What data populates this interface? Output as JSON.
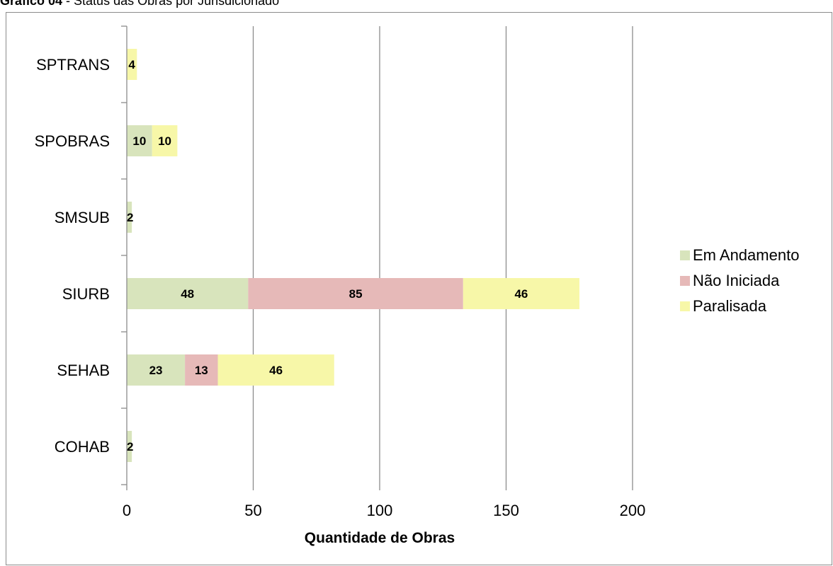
{
  "caption": {
    "prefix": "Gráfico 04",
    "text": " - Status das Obras por Jurisdicionado"
  },
  "chart_data": {
    "type": "bar",
    "orientation": "horizontal",
    "stacked": true,
    "title": "",
    "xlabel": "Quantidade de Obras",
    "ylabel": "",
    "xlim": [
      0,
      200
    ],
    "xticks": [
      0,
      50,
      100,
      150,
      200
    ],
    "grid": "vertical",
    "legend": "right",
    "categories": [
      "SPTRANS",
      "SPOBRAS",
      "SMSUB",
      "SIURB",
      "SEHAB",
      "COHAB"
    ],
    "series": [
      {
        "name": "Em Andamento",
        "color": "#d8e4bc",
        "values": [
          0,
          10,
          2,
          48,
          23,
          2
        ]
      },
      {
        "name": "Não Iniciada",
        "color": "#e6b9b8",
        "values": [
          0,
          0,
          0,
          85,
          13,
          0
        ]
      },
      {
        "name": "Paralisada",
        "color": "#f7f7a8",
        "values": [
          4,
          10,
          0,
          46,
          46,
          0
        ]
      }
    ]
  }
}
